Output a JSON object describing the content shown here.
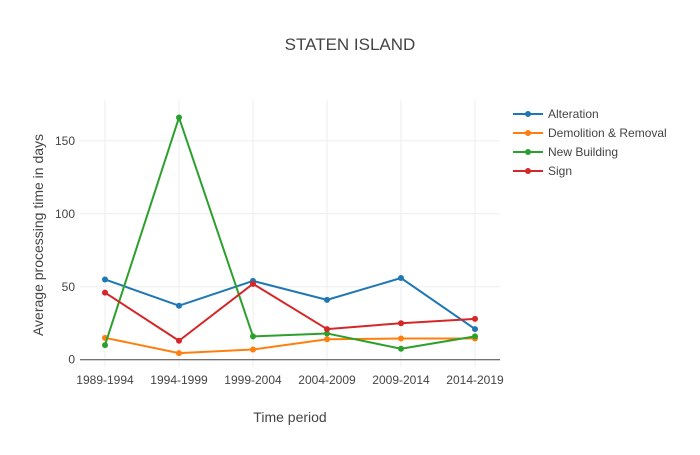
{
  "chart_data": {
    "type": "line",
    "title": "STATEN ISLAND",
    "xlabel": "Time period",
    "ylabel": "Average processing time in days",
    "categories": [
      "1989-1994",
      "1994-1999",
      "1999-2004",
      "2004-2009",
      "2009-2014",
      "2014-2019"
    ],
    "yticks": [
      0,
      50,
      100,
      150
    ],
    "ylim": [
      -5,
      178
    ],
    "grid": true,
    "legend_position": "top-right",
    "series": [
      {
        "name": "Alteration",
        "color": "#1f77b4",
        "values": [
          55,
          37,
          54,
          41,
          56,
          21
        ]
      },
      {
        "name": "Demolition & Removal",
        "color": "#ff7f0e",
        "values": [
          15,
          4.5,
          7,
          14,
          14.5,
          14.5
        ]
      },
      {
        "name": "New Building",
        "color": "#2ca02c",
        "values": [
          10,
          166,
          16,
          18,
          7.5,
          16
        ]
      },
      {
        "name": "Sign",
        "color": "#d62728",
        "values": [
          46,
          13,
          52,
          21,
          25,
          28
        ]
      }
    ]
  }
}
